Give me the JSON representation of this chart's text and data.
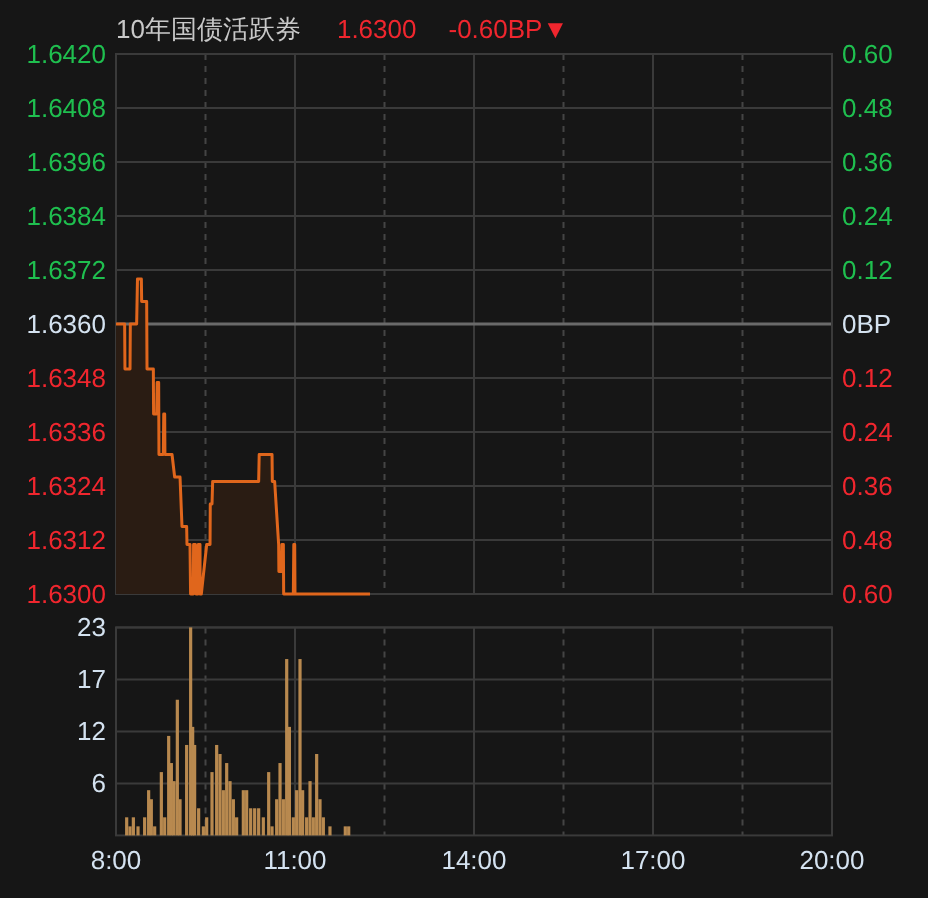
{
  "chart_data": [
    {
      "type": "area",
      "title": "10年国债活跃券",
      "annotations": [
        "1.6300",
        "-0.60BP▼"
      ],
      "color": "#e0661c",
      "grid": true,
      "tick_labels": "y",
      "x": [
        8.0,
        8.145,
        8.15,
        8.235,
        8.24,
        8.346,
        8.36,
        8.425,
        8.43,
        8.514,
        8.52,
        8.626,
        8.63,
        8.682,
        8.69,
        8.715,
        8.72,
        8.793,
        8.8,
        8.816,
        8.82,
        8.939,
        8.983,
        9.073,
        9.106,
        9.184,
        9.19,
        9.24,
        9.25,
        9.296,
        9.3,
        9.33,
        9.34,
        9.374,
        9.38,
        9.408,
        9.41,
        9.43,
        9.52,
        9.576,
        9.58,
        9.609,
        9.62,
        9.654,
        10.391,
        10.4,
        10.436,
        10.615,
        10.62,
        10.659,
        10.726,
        10.73,
        10.771,
        10.78,
        10.805,
        10.81,
        10.861,
        10.972,
        10.98,
        10.995,
        11.0,
        11.017,
        12.257
      ],
      "values": [
        1.636,
        1.636,
        1.635,
        1.635,
        1.636,
        1.636,
        1.637,
        1.637,
        1.6365,
        1.6365,
        1.635,
        1.635,
        1.634,
        1.634,
        1.6347,
        1.6347,
        1.6331,
        1.6331,
        1.634,
        1.634,
        1.6331,
        1.6331,
        1.6326,
        1.6326,
        1.6315,
        1.6315,
        1.6311,
        1.6311,
        1.63,
        1.63,
        1.6311,
        1.6311,
        1.63,
        1.63,
        1.6311,
        1.6311,
        1.63,
        1.63,
        1.6311,
        1.6311,
        1.632,
        1.632,
        1.6325,
        1.6325,
        1.6325,
        1.6331,
        1.6331,
        1.6331,
        1.6325,
        1.6325,
        1.6311,
        1.6305,
        1.6305,
        1.6311,
        1.6311,
        1.63,
        1.63,
        1.63,
        1.6311,
        1.6311,
        1.63,
        1.63,
        1.63
      ],
      "ref_lines": [
        {
          "axis": "y",
          "value": 1.636
        }
      ],
      "xlim": [
        8,
        20
      ],
      "xticks": [
        {
          "value": 8,
          "label": null
        },
        {
          "value": 9.5,
          "label": null
        },
        {
          "value": 11,
          "label": null
        },
        {
          "value": 12.5,
          "label": null
        },
        {
          "value": 14,
          "label": null
        },
        {
          "value": 15.5,
          "label": null
        },
        {
          "value": 17,
          "label": null
        },
        {
          "value": 18.5,
          "label": null
        },
        {
          "value": 20,
          "label": null
        }
      ],
      "ylim": [
        1.63,
        1.642
      ],
      "yticks": [
        {
          "value": 1.63,
          "label": "1.6300"
        },
        {
          "value": 1.6312,
          "label": "1.6312"
        },
        {
          "value": 1.6324,
          "label": "1.6324"
        },
        {
          "value": 1.6336,
          "label": "1.6336"
        },
        {
          "value": 1.6348,
          "label": "1.6348"
        },
        {
          "value": 1.636,
          "label": "1.6360"
        },
        {
          "value": 1.6372,
          "label": "1.6372"
        },
        {
          "value": 1.6384,
          "label": "1.6384"
        },
        {
          "value": 1.6396,
          "label": "1.6396"
        },
        {
          "value": 1.6408,
          "label": "1.6408"
        },
        {
          "value": 1.642,
          "label": "1.6420"
        }
      ],
      "y2lim": [
        -0.6,
        0.6
      ],
      "y2ticks": [
        {
          "value": -0.6,
          "label": "0.60"
        },
        {
          "value": -0.48,
          "label": "0.48"
        },
        {
          "value": -0.36,
          "label": "0.36"
        },
        {
          "value": -0.24,
          "label": "0.24"
        },
        {
          "value": -0.12,
          "label": "0.12"
        },
        {
          "value": 0,
          "label": "0BP"
        },
        {
          "value": 0.12,
          "label": "0.12"
        },
        {
          "value": 0.24,
          "label": "0.24"
        },
        {
          "value": 0.36,
          "label": "0.36"
        },
        {
          "value": 0.48,
          "label": "0.48"
        },
        {
          "value": 0.6,
          "label": "0.60"
        }
      ]
    },
    {
      "type": "bar",
      "color": "#b8894f",
      "grid": true,
      "x": [
        8.179,
        8.235,
        8.291,
        8.369,
        8.48,
        8.547,
        8.592,
        8.648,
        8.76,
        8.816,
        8.883,
        8.928,
        8.972,
        9.028,
        9.073,
        9.184,
        9.251,
        9.285,
        9.318,
        9.385,
        9.464,
        9.52,
        9.609,
        9.687,
        9.743,
        9.799,
        9.855,
        9.911,
        9.967,
        10.022,
        10.134,
        10.19,
        10.257,
        10.324,
        10.391,
        10.469,
        10.559,
        10.615,
        10.693,
        10.749,
        10.805,
        10.861,
        10.906,
        10.972,
        11.028,
        11.084,
        11.128,
        11.195,
        11.252,
        11.307,
        11.363,
        11.419,
        11.475,
        11.586,
        11.843,
        11.9
      ],
      "values": [
        2,
        1,
        2,
        1,
        2,
        5,
        4,
        1,
        7,
        2,
        11,
        8,
        6,
        15,
        4,
        10,
        23,
        12,
        10,
        3,
        1,
        2,
        7,
        10,
        9,
        5,
        8,
        6,
        4,
        2,
        5,
        5,
        3,
        3,
        3,
        2,
        7,
        1,
        4,
        8,
        4,
        19.5,
        12,
        2,
        5,
        19.5,
        5,
        2,
        6,
        2,
        9,
        4,
        2,
        1,
        1,
        1
      ],
      "xlim": [
        8,
        20
      ],
      "xticks": [
        {
          "value": 8,
          "label": "8:00"
        },
        {
          "value": 9.5,
          "label": null
        },
        {
          "value": 11,
          "label": "11:00"
        },
        {
          "value": 12.5,
          "label": null
        },
        {
          "value": 14,
          "label": "14:00"
        },
        {
          "value": 15.5,
          "label": null
        },
        {
          "value": 17,
          "label": "17:00"
        },
        {
          "value": 18.5,
          "label": null
        },
        {
          "value": 20,
          "label": "20:00"
        }
      ],
      "ylim": [
        0,
        23
      ],
      "yticks": [
        {
          "value": 5.75,
          "label": "6"
        },
        {
          "value": 11.5,
          "label": "12"
        },
        {
          "value": 17.25,
          "label": "17"
        },
        {
          "value": 23,
          "label": "23"
        }
      ]
    }
  ]
}
